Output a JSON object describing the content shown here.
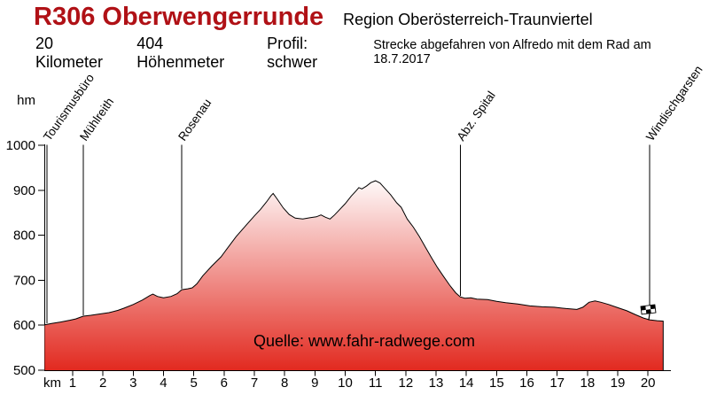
{
  "header": {
    "title": "R306 Oberwengerrunde",
    "region": "Region Oberösterreich-Traunviertel",
    "distance": "20 Kilometer",
    "elevation_gain": "404 Höhenmeter",
    "profile_label": "Profil: schwer",
    "note": "Strecke abgefahren von Alfredo mit dem Rad am 18.7.2017"
  },
  "watermark": "Quelle: www.fahr-radwege.com",
  "icons": {
    "finish_flag": "checkered-flag"
  },
  "colors": {
    "title": "#b01116",
    "profile_fill_top": "#ffffff",
    "profile_fill_bottom": "#e22a20",
    "outline": "#000000"
  },
  "chart_data": {
    "type": "area",
    "title": "R306 Oberwengerrunde elevation profile",
    "xlabel": "km",
    "ylabel": "hm",
    "xlim": [
      0,
      20.5
    ],
    "ylim": [
      500,
      1000
    ],
    "grid": false,
    "x_ticks": [
      1,
      2,
      3,
      4,
      5,
      6,
      7,
      8,
      9,
      10,
      11,
      12,
      13,
      14,
      15,
      16,
      17,
      18,
      19,
      20
    ],
    "y_ticks": [
      500,
      600,
      700,
      800,
      900,
      1000
    ],
    "waypoints": [
      {
        "name": "Tourismusbüro",
        "km": 0.15
      },
      {
        "name": "Mühlreith",
        "km": 1.35
      },
      {
        "name": "Rosenau",
        "km": 4.6
      },
      {
        "name": "Abz. Spital",
        "km": 13.8
      },
      {
        "name": "Windischgarsten",
        "km": 20.05,
        "finish_flag": true
      }
    ],
    "profile_km_hm": [
      [
        0.08,
        601
      ],
      [
        0.3,
        604
      ],
      [
        0.6,
        607
      ],
      [
        0.9,
        611
      ],
      [
        1.1,
        614
      ],
      [
        1.35,
        620
      ],
      [
        1.6,
        622
      ],
      [
        1.9,
        625
      ],
      [
        2.2,
        628
      ],
      [
        2.5,
        633
      ],
      [
        2.7,
        638
      ],
      [
        3.0,
        646
      ],
      [
        3.3,
        656
      ],
      [
        3.55,
        666
      ],
      [
        3.65,
        669
      ],
      [
        3.8,
        664
      ],
      [
        4.0,
        661
      ],
      [
        4.25,
        664
      ],
      [
        4.45,
        670
      ],
      [
        4.6,
        679
      ],
      [
        4.8,
        681
      ],
      [
        4.95,
        683
      ],
      [
        5.1,
        692
      ],
      [
        5.3,
        710
      ],
      [
        5.6,
        732
      ],
      [
        5.9,
        752
      ],
      [
        6.1,
        770
      ],
      [
        6.4,
        797
      ],
      [
        6.7,
        820
      ],
      [
        7.0,
        843
      ],
      [
        7.2,
        857
      ],
      [
        7.4,
        874
      ],
      [
        7.55,
        888
      ],
      [
        7.62,
        893
      ],
      [
        7.75,
        881
      ],
      [
        7.95,
        861
      ],
      [
        8.15,
        846
      ],
      [
        8.35,
        838
      ],
      [
        8.6,
        836
      ],
      [
        8.85,
        839
      ],
      [
        9.05,
        841
      ],
      [
        9.2,
        845
      ],
      [
        9.35,
        840
      ],
      [
        9.5,
        836
      ],
      [
        9.65,
        845
      ],
      [
        9.8,
        856
      ],
      [
        10.0,
        870
      ],
      [
        10.2,
        887
      ],
      [
        10.35,
        898
      ],
      [
        10.45,
        906
      ],
      [
        10.55,
        903
      ],
      [
        10.7,
        909
      ],
      [
        10.85,
        917
      ],
      [
        11.0,
        921
      ],
      [
        11.15,
        916
      ],
      [
        11.3,
        905
      ],
      [
        11.5,
        890
      ],
      [
        11.7,
        872
      ],
      [
        11.85,
        862
      ],
      [
        12.05,
        836
      ],
      [
        12.25,
        818
      ],
      [
        12.45,
        797
      ],
      [
        12.65,
        773
      ],
      [
        12.85,
        750
      ],
      [
        13.05,
        728
      ],
      [
        13.25,
        708
      ],
      [
        13.45,
        689
      ],
      [
        13.65,
        672
      ],
      [
        13.8,
        663
      ],
      [
        13.95,
        660
      ],
      [
        14.15,
        661
      ],
      [
        14.35,
        658
      ],
      [
        14.7,
        657
      ],
      [
        15.0,
        653
      ],
      [
        15.3,
        650
      ],
      [
        15.7,
        647
      ],
      [
        16.1,
        643
      ],
      [
        16.5,
        641
      ],
      [
        16.9,
        640
      ],
      [
        17.3,
        637
      ],
      [
        17.65,
        635
      ],
      [
        17.85,
        640
      ],
      [
        18.05,
        651
      ],
      [
        18.25,
        654
      ],
      [
        18.45,
        651
      ],
      [
        18.7,
        646
      ],
      [
        19.0,
        639
      ],
      [
        19.3,
        632
      ],
      [
        19.6,
        623
      ],
      [
        19.85,
        616
      ],
      [
        20.05,
        612
      ],
      [
        20.3,
        610
      ],
      [
        20.5,
        609
      ]
    ]
  }
}
